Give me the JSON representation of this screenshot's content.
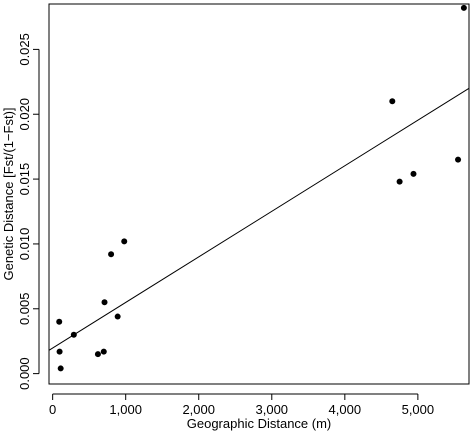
{
  "chart_data": {
    "type": "scatter",
    "xlabel": "Geographic Distance (m)",
    "ylabel": "Genetic Distance [Fst/(1−Fst)]",
    "xlim": [
      -50,
      5700
    ],
    "ylim": [
      -0.0008,
      0.0285
    ],
    "x_ticks": [
      0,
      1000,
      2000,
      3000,
      4000,
      5000
    ],
    "x_tick_labels": [
      "0",
      "1,000",
      "2,000",
      "3,000",
      "4,000",
      "5,000"
    ],
    "y_ticks": [
      0.0,
      0.005,
      0.01,
      0.015,
      0.02,
      0.025
    ],
    "y_tick_labels": [
      "0.000",
      "0.005",
      "0.010",
      "0.015",
      "0.020",
      "0.025"
    ],
    "points": [
      {
        "x": 90,
        "y": 0.004
      },
      {
        "x": 95,
        "y": 0.0017
      },
      {
        "x": 110,
        "y": 0.0004
      },
      {
        "x": 290,
        "y": 0.003
      },
      {
        "x": 620,
        "y": 0.0015
      },
      {
        "x": 700,
        "y": 0.0017
      },
      {
        "x": 710,
        "y": 0.0055
      },
      {
        "x": 800,
        "y": 0.0092
      },
      {
        "x": 890,
        "y": 0.0044
      },
      {
        "x": 980,
        "y": 0.0102
      },
      {
        "x": 4650,
        "y": 0.021
      },
      {
        "x": 4750,
        "y": 0.0148
      },
      {
        "x": 4940,
        "y": 0.0154
      },
      {
        "x": 5550,
        "y": 0.0165
      },
      {
        "x": 5630,
        "y": 0.0282
      }
    ],
    "regression_line": {
      "x": [
        -50,
        5700
      ],
      "y": [
        0.0018,
        0.022
      ]
    },
    "grid": false,
    "legend": "none"
  }
}
